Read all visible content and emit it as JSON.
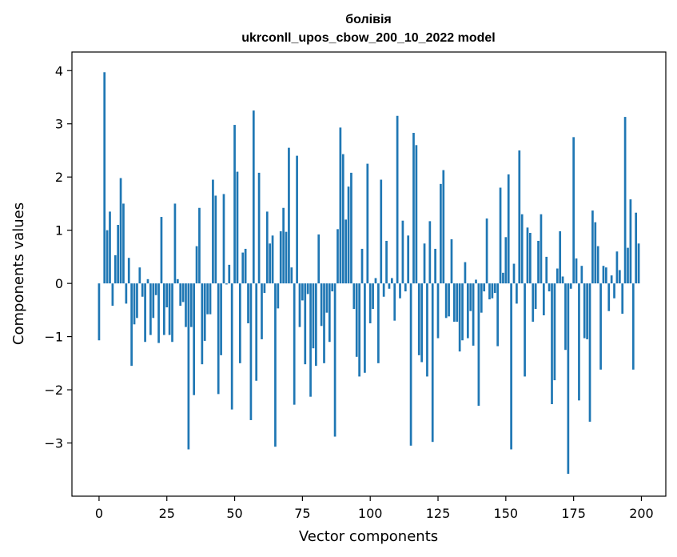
{
  "chart_data": {
    "type": "bar",
    "title": "болівія",
    "subtitle": "ukrconll_upos_cbow_200_10_2022 model",
    "xlabel": "Vector components",
    "ylabel": "Components values",
    "xlim": [
      -10,
      209
    ],
    "ylim": [
      -4,
      4.35
    ],
    "xticks": [
      0,
      25,
      50,
      75,
      100,
      125,
      150,
      175,
      200
    ],
    "yticks": [
      -3,
      -2,
      -1,
      0,
      1,
      2,
      3,
      4
    ],
    "ytick_labels": [
      "−3",
      "−2",
      "−1",
      "0",
      "1",
      "2",
      "3",
      "4"
    ],
    "grid": false,
    "bar_color": "#1f77b4",
    "x": [
      0,
      1,
      2,
      3,
      4,
      5,
      6,
      7,
      8,
      9,
      10,
      11,
      12,
      13,
      14,
      15,
      16,
      17,
      18,
      19,
      20,
      21,
      22,
      23,
      24,
      25,
      26,
      27,
      28,
      29,
      30,
      31,
      32,
      33,
      34,
      35,
      36,
      37,
      38,
      39,
      40,
      41,
      42,
      43,
      44,
      45,
      46,
      47,
      48,
      49,
      50,
      51,
      52,
      53,
      54,
      55,
      56,
      57,
      58,
      59,
      60,
      61,
      62,
      63,
      64,
      65,
      66,
      67,
      68,
      69,
      70,
      71,
      72,
      73,
      74,
      75,
      76,
      77,
      78,
      79,
      80,
      81,
      82,
      83,
      84,
      85,
      86,
      87,
      88,
      89,
      90,
      91,
      92,
      93,
      94,
      95,
      96,
      97,
      98,
      99,
      100,
      101,
      102,
      103,
      104,
      105,
      106,
      107,
      108,
      109,
      110,
      111,
      112,
      113,
      114,
      115,
      116,
      117,
      118,
      119,
      120,
      121,
      122,
      123,
      124,
      125,
      126,
      127,
      128,
      129,
      130,
      131,
      132,
      133,
      134,
      135,
      136,
      137,
      138,
      139,
      140,
      141,
      142,
      143,
      144,
      145,
      146,
      147,
      148,
      149,
      150,
      151,
      152,
      153,
      154,
      155,
      156,
      157,
      158,
      159,
      160,
      161,
      162,
      163,
      164,
      165,
      166,
      167,
      168,
      169,
      170,
      171,
      172,
      173,
      174,
      175,
      176,
      177,
      178,
      179,
      180,
      181,
      182,
      183,
      184,
      185,
      186,
      187,
      188,
      189,
      190,
      191,
      192,
      193,
      194,
      195,
      196,
      197,
      198,
      199
    ],
    "values": [
      -1.07,
      0.0,
      3.97,
      1.0,
      1.35,
      -0.42,
      0.53,
      1.1,
      1.98,
      1.5,
      -0.38,
      0.48,
      -1.55,
      -0.77,
      -0.65,
      0.3,
      -0.25,
      -1.1,
      0.08,
      -0.97,
      -0.65,
      -0.22,
      -1.12,
      1.25,
      -0.97,
      -0.45,
      -0.97,
      -1.1,
      1.5,
      0.08,
      -0.42,
      -0.35,
      -0.82,
      -3.12,
      -0.82,
      -2.1,
      0.7,
      1.42,
      -1.52,
      -1.08,
      -0.58,
      -0.58,
      1.95,
      1.65,
      -2.08,
      -1.35,
      1.68,
      -0.02,
      0.35,
      -2.37,
      2.98,
      2.1,
      -1.5,
      0.58,
      0.65,
      -0.75,
      -2.57,
      3.25,
      -1.83,
      2.08,
      -1.05,
      -0.18,
      1.35,
      0.75,
      0.9,
      -3.07,
      -0.47,
      0.98,
      1.42,
      0.97,
      2.55,
      0.3,
      -2.28,
      2.4,
      -0.82,
      -0.32,
      -1.52,
      -0.2,
      -2.13,
      -1.22,
      -1.55,
      0.92,
      -0.8,
      -1.5,
      -0.55,
      -1.1,
      -0.15,
      -2.88,
      1.02,
      2.93,
      2.43,
      1.2,
      1.82,
      2.08,
      -0.48,
      -1.38,
      -1.75,
      0.65,
      -1.68,
      2.25,
      -0.75,
      -0.48,
      0.1,
      -1.5,
      1.95,
      -0.25,
      0.8,
      -0.1,
      0.1,
      -0.7,
      3.15,
      -0.28,
      1.18,
      -0.15,
      0.9,
      -3.05,
      2.83,
      2.6,
      -1.35,
      -1.48,
      0.75,
      -1.75,
      1.17,
      -2.98,
      0.65,
      -1.03,
      1.87,
      2.13,
      -0.65,
      -0.62,
      0.83,
      -0.72,
      -0.72,
      -1.28,
      -1.07,
      0.4,
      -1.03,
      -0.52,
      -1.17,
      0.07,
      -2.3,
      -0.55,
      -0.15,
      1.22,
      -0.3,
      -0.28,
      -0.18,
      -1.18,
      1.8,
      0.2,
      0.87,
      2.05,
      -3.12,
      0.37,
      -0.38,
      2.5,
      1.3,
      -1.75,
      1.05,
      0.95,
      -0.72,
      -0.48,
      0.8,
      1.3,
      -0.6,
      0.5,
      -0.15,
      -2.27,
      -1.82,
      0.28,
      0.98,
      0.13,
      -1.25,
      -3.58,
      -0.1,
      2.75,
      0.47,
      -2.2,
      0.33,
      -1.03,
      -1.05,
      -2.6,
      1.37,
      1.15,
      0.7,
      -1.62,
      0.33,
      0.3,
      -0.52,
      0.15,
      -0.28,
      0.6,
      0.25,
      -0.57,
      3.13,
      0.67,
      1.58,
      -1.62,
      1.33,
      0.75
    ]
  }
}
